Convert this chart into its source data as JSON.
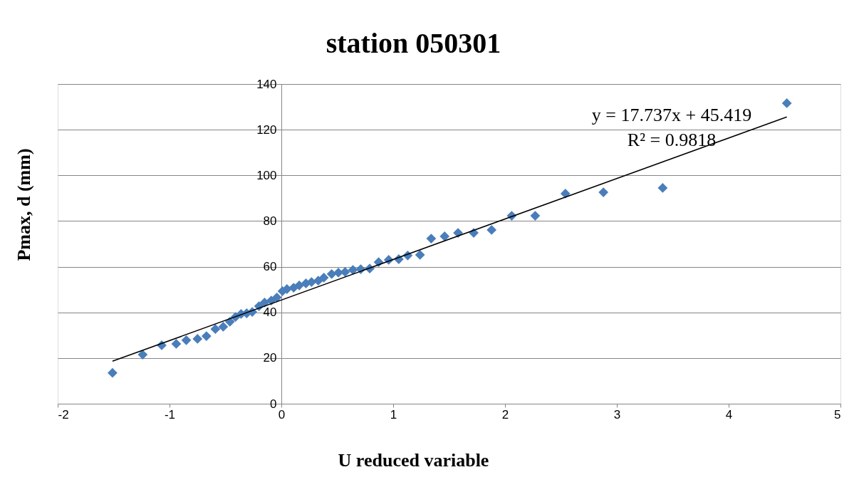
{
  "chart_data": {
    "type": "scatter",
    "title": "station 050301",
    "xlabel": "U reduced variable",
    "ylabel": "Pmax, d (mm)",
    "xlim": [
      -2,
      5
    ],
    "xticks": [
      -2,
      -1,
      0,
      1,
      2,
      3,
      4,
      5
    ],
    "ylim": [
      0,
      140
    ],
    "yticks": [
      0,
      20,
      40,
      60,
      80,
      100,
      120,
      140
    ],
    "grid": "y",
    "annotations": [
      "y = 17.737x + 45.419",
      "R² = 0.9818"
    ],
    "series": [
      {
        "color": "#4a7ebb",
        "marker": "diamond",
        "x": [
          -1.51,
          -1.24,
          -1.07,
          -0.94,
          -0.85,
          -0.75,
          -0.67,
          -0.59,
          -0.52,
          -0.46,
          -0.41,
          -0.36,
          -0.31,
          -0.26,
          -0.2,
          -0.15,
          -0.09,
          -0.04,
          0.01,
          0.05,
          0.11,
          0.16,
          0.22,
          0.27,
          0.33,
          0.38,
          0.45,
          0.51,
          0.57,
          0.64,
          0.71,
          0.79,
          0.87,
          0.96,
          1.05,
          1.13,
          1.24,
          1.34,
          1.46,
          1.58,
          1.72,
          1.88,
          2.06,
          2.27,
          2.54,
          2.88,
          3.41,
          4.52
        ],
        "values": [
          13.5,
          21.5,
          25.6,
          26.2,
          27.8,
          28.4,
          29.6,
          32.7,
          33.7,
          35.9,
          38,
          39.3,
          39.6,
          40.2,
          42.7,
          44.3,
          45.2,
          46.5,
          49.3,
          50.2,
          50.8,
          51.8,
          52.7,
          53.3,
          53.9,
          55.2,
          56.8,
          57.4,
          57.7,
          58.6,
          58.9,
          59.2,
          62,
          63,
          63.3,
          64.9,
          65.2,
          72.3,
          73.3,
          74.8,
          74.8,
          76.1,
          82.3,
          82.3,
          92,
          92.6,
          94.5,
          131.6
        ]
      },
      {
        "type": "line",
        "color": "#000000",
        "line_style": "solid",
        "x": [
          -1.51,
          4.52
        ],
        "values": [
          18.6,
          125.6
        ]
      }
    ]
  }
}
